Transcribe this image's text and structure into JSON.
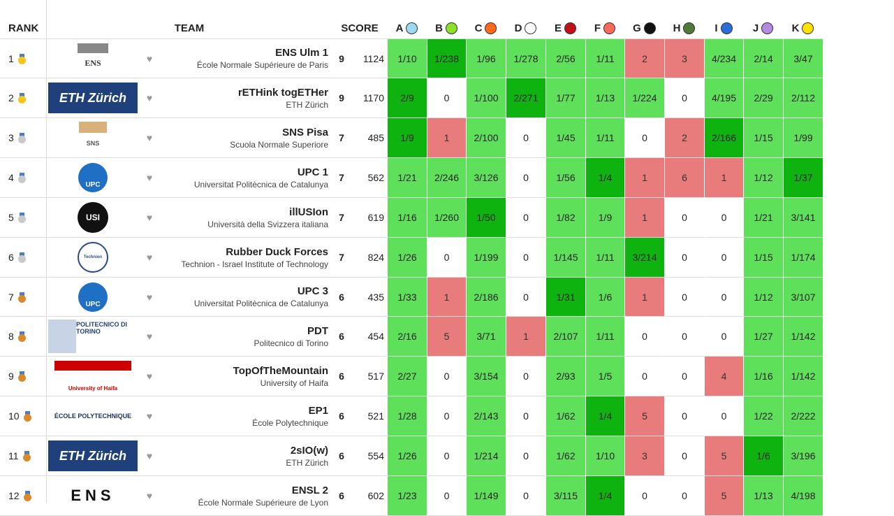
{
  "header": {
    "rank": "RANK",
    "team": "TEAM",
    "score": "SCORE",
    "problems": [
      {
        "letter": "A",
        "color": "#9fd9ef"
      },
      {
        "letter": "B",
        "color": "#8ee02a"
      },
      {
        "letter": "C",
        "color": "#ff6b1a"
      },
      {
        "letter": "D",
        "color": "#ffffff"
      },
      {
        "letter": "E",
        "color": "#c0101a"
      },
      {
        "letter": "F",
        "color": "#ff6a5a"
      },
      {
        "letter": "G",
        "color": "#111111"
      },
      {
        "letter": "H",
        "color": "#4e7a3a"
      },
      {
        "letter": "I",
        "color": "#2a6fd6"
      },
      {
        "letter": "J",
        "color": "#b48be0"
      },
      {
        "letter": "K",
        "color": "#ffe000"
      }
    ]
  },
  "rows": [
    {
      "rank": "1",
      "medal": "gold",
      "logo": "ENS",
      "logo_icon": "ens-logo-icon",
      "name": "ENS Ulm 1",
      "uni": "École Normale Supérieure de Paris",
      "solved": "9",
      "penalty": "1124",
      "cells": [
        [
          "1/10",
          "s"
        ],
        [
          "1/238",
          "f"
        ],
        [
          "1/96",
          "s"
        ],
        [
          "1/278",
          "s"
        ],
        [
          "2/56",
          "s"
        ],
        [
          "1/11",
          "s"
        ],
        [
          "2",
          "x"
        ],
        [
          "3",
          "x"
        ],
        [
          "4/234",
          "s"
        ],
        [
          "2/14",
          "s"
        ],
        [
          "3/47",
          "s"
        ]
      ]
    },
    {
      "rank": "2",
      "medal": "gold",
      "logo": "ETH Zürich",
      "logo_icon": "eth-logo-icon",
      "name": "rETHink togETHer",
      "uni": "ETH Zürich",
      "solved": "9",
      "penalty": "1170",
      "cells": [
        [
          "2/9",
          "f"
        ],
        [
          "0",
          "n"
        ],
        [
          "1/100",
          "s"
        ],
        [
          "2/271",
          "f"
        ],
        [
          "1/77",
          "s"
        ],
        [
          "1/13",
          "s"
        ],
        [
          "1/224",
          "s"
        ],
        [
          "0",
          "n"
        ],
        [
          "4/195",
          "s"
        ],
        [
          "2/29",
          "s"
        ],
        [
          "2/112",
          "s"
        ]
      ]
    },
    {
      "rank": "3",
      "medal": "silver",
      "logo": "SNS",
      "logo_icon": "sns-logo-icon",
      "name": "SNS Pisa",
      "uni": "Scuola Normale Superiore",
      "solved": "7",
      "penalty": "485",
      "cells": [
        [
          "1/9",
          "f"
        ],
        [
          "1",
          "x"
        ],
        [
          "2/100",
          "s"
        ],
        [
          "0",
          "n"
        ],
        [
          "1/45",
          "s"
        ],
        [
          "1/11",
          "s"
        ],
        [
          "0",
          "n"
        ],
        [
          "2",
          "x"
        ],
        [
          "2/166",
          "f"
        ],
        [
          "1/15",
          "s"
        ],
        [
          "1/99",
          "s"
        ]
      ]
    },
    {
      "rank": "4",
      "medal": "silver",
      "logo": "UPC",
      "logo_icon": "upc-logo-icon",
      "name": "UPC 1",
      "uni": "Universitat Politècnica de Catalunya",
      "solved": "7",
      "penalty": "562",
      "cells": [
        [
          "1/21",
          "s"
        ],
        [
          "2/246",
          "s"
        ],
        [
          "3/126",
          "s"
        ],
        [
          "0",
          "n"
        ],
        [
          "1/56",
          "s"
        ],
        [
          "1/4",
          "f"
        ],
        [
          "1",
          "x"
        ],
        [
          "6",
          "x"
        ],
        [
          "1",
          "x"
        ],
        [
          "1/12",
          "s"
        ],
        [
          "1/37",
          "f"
        ]
      ]
    },
    {
      "rank": "5",
      "medal": "silver",
      "logo": "USI",
      "logo_icon": "usi-logo-icon",
      "name": "illUSIon",
      "uni": "Università della Svizzera italiana",
      "solved": "7",
      "penalty": "619",
      "cells": [
        [
          "1/16",
          "s"
        ],
        [
          "1/260",
          "s"
        ],
        [
          "1/50",
          "f"
        ],
        [
          "0",
          "n"
        ],
        [
          "1/82",
          "s"
        ],
        [
          "1/9",
          "s"
        ],
        [
          "1",
          "x"
        ],
        [
          "0",
          "n"
        ],
        [
          "0",
          "n"
        ],
        [
          "1/21",
          "s"
        ],
        [
          "3/141",
          "s"
        ]
      ]
    },
    {
      "rank": "6",
      "medal": "silver",
      "logo": "Technion",
      "logo_icon": "technion-logo-icon",
      "name": "Rubber Duck Forces",
      "uni": "Technion - Israel Institute of Technology",
      "solved": "7",
      "penalty": "824",
      "cells": [
        [
          "1/26",
          "s"
        ],
        [
          "0",
          "n"
        ],
        [
          "1/199",
          "s"
        ],
        [
          "0",
          "n"
        ],
        [
          "1/145",
          "s"
        ],
        [
          "1/11",
          "s"
        ],
        [
          "3/214",
          "f"
        ],
        [
          "0",
          "n"
        ],
        [
          "0",
          "n"
        ],
        [
          "1/15",
          "s"
        ],
        [
          "1/174",
          "s"
        ]
      ]
    },
    {
      "rank": "7",
      "medal": "bronze",
      "logo": "UPC",
      "logo_icon": "upc-logo-icon",
      "name": "UPC 3",
      "uni": "Universitat Politècnica de Catalunya",
      "solved": "6",
      "penalty": "435",
      "cells": [
        [
          "1/33",
          "s"
        ],
        [
          "1",
          "x"
        ],
        [
          "2/186",
          "s"
        ],
        [
          "0",
          "n"
        ],
        [
          "1/31",
          "f"
        ],
        [
          "1/6",
          "s"
        ],
        [
          "1",
          "x"
        ],
        [
          "0",
          "n"
        ],
        [
          "0",
          "n"
        ],
        [
          "1/12",
          "s"
        ],
        [
          "3/107",
          "s"
        ]
      ]
    },
    {
      "rank": "8",
      "medal": "bronze",
      "logo": "POLITECNICO DI TORINO",
      "logo_icon": "polito-logo-icon",
      "name": "PDT",
      "uni": "Politecnico di Torino",
      "solved": "6",
      "penalty": "454",
      "cells": [
        [
          "2/16",
          "s"
        ],
        [
          "5",
          "x"
        ],
        [
          "3/71",
          "s"
        ],
        [
          "1",
          "x"
        ],
        [
          "2/107",
          "s"
        ],
        [
          "1/11",
          "s"
        ],
        [
          "0",
          "n"
        ],
        [
          "0",
          "n"
        ],
        [
          "0",
          "n"
        ],
        [
          "1/27",
          "s"
        ],
        [
          "1/142",
          "s"
        ]
      ]
    },
    {
      "rank": "9",
      "medal": "bronze",
      "logo": "University of Haifa",
      "logo_icon": "haifa-logo-icon",
      "name": "TopOfTheMountain",
      "uni": "University of Haifa",
      "solved": "6",
      "penalty": "517",
      "cells": [
        [
          "2/27",
          "s"
        ],
        [
          "0",
          "n"
        ],
        [
          "3/154",
          "s"
        ],
        [
          "0",
          "n"
        ],
        [
          "2/93",
          "s"
        ],
        [
          "1/5",
          "s"
        ],
        [
          "0",
          "n"
        ],
        [
          "0",
          "n"
        ],
        [
          "4",
          "x"
        ],
        [
          "1/16",
          "s"
        ],
        [
          "1/142",
          "s"
        ]
      ]
    },
    {
      "rank": "10",
      "medal": "bronze",
      "logo": "ÉCOLE POLYTECHNIQUE",
      "logo_icon": "polytechnique-logo-icon",
      "name": "EP1",
      "uni": "École Polytechnique",
      "solved": "6",
      "penalty": "521",
      "cells": [
        [
          "1/28",
          "s"
        ],
        [
          "0",
          "n"
        ],
        [
          "2/143",
          "s"
        ],
        [
          "0",
          "n"
        ],
        [
          "1/62",
          "s"
        ],
        [
          "1/4",
          "f"
        ],
        [
          "5",
          "x"
        ],
        [
          "0",
          "n"
        ],
        [
          "0",
          "n"
        ],
        [
          "1/22",
          "s"
        ],
        [
          "2/222",
          "s"
        ]
      ]
    },
    {
      "rank": "11",
      "medal": "bronze",
      "logo": "ETH Zürich",
      "logo_icon": "eth-logo-icon",
      "name": "2sIO(w)",
      "uni": "ETH Zürich",
      "solved": "6",
      "penalty": "554",
      "cells": [
        [
          "1/26",
          "s"
        ],
        [
          "0",
          "n"
        ],
        [
          "1/214",
          "s"
        ],
        [
          "0",
          "n"
        ],
        [
          "1/62",
          "s"
        ],
        [
          "1/10",
          "s"
        ],
        [
          "3",
          "x"
        ],
        [
          "0",
          "n"
        ],
        [
          "5",
          "x"
        ],
        [
          "1/6",
          "f"
        ],
        [
          "3/196",
          "s"
        ]
      ]
    },
    {
      "rank": "12",
      "medal": "bronze",
      "logo": "ENS",
      "logo_icon": "ensl-logo-icon",
      "name": "ENSL 2",
      "uni": "École Normale Supérieure de Lyon",
      "solved": "6",
      "penalty": "602",
      "cells": [
        [
          "1/23",
          "s"
        ],
        [
          "0",
          "n"
        ],
        [
          "1/149",
          "s"
        ],
        [
          "0",
          "n"
        ],
        [
          "3/115",
          "s"
        ],
        [
          "1/4",
          "f"
        ],
        [
          "0",
          "n"
        ],
        [
          "0",
          "n"
        ],
        [
          "5",
          "x"
        ],
        [
          "1/13",
          "s"
        ],
        [
          "4/198",
          "s"
        ]
      ]
    }
  ]
}
